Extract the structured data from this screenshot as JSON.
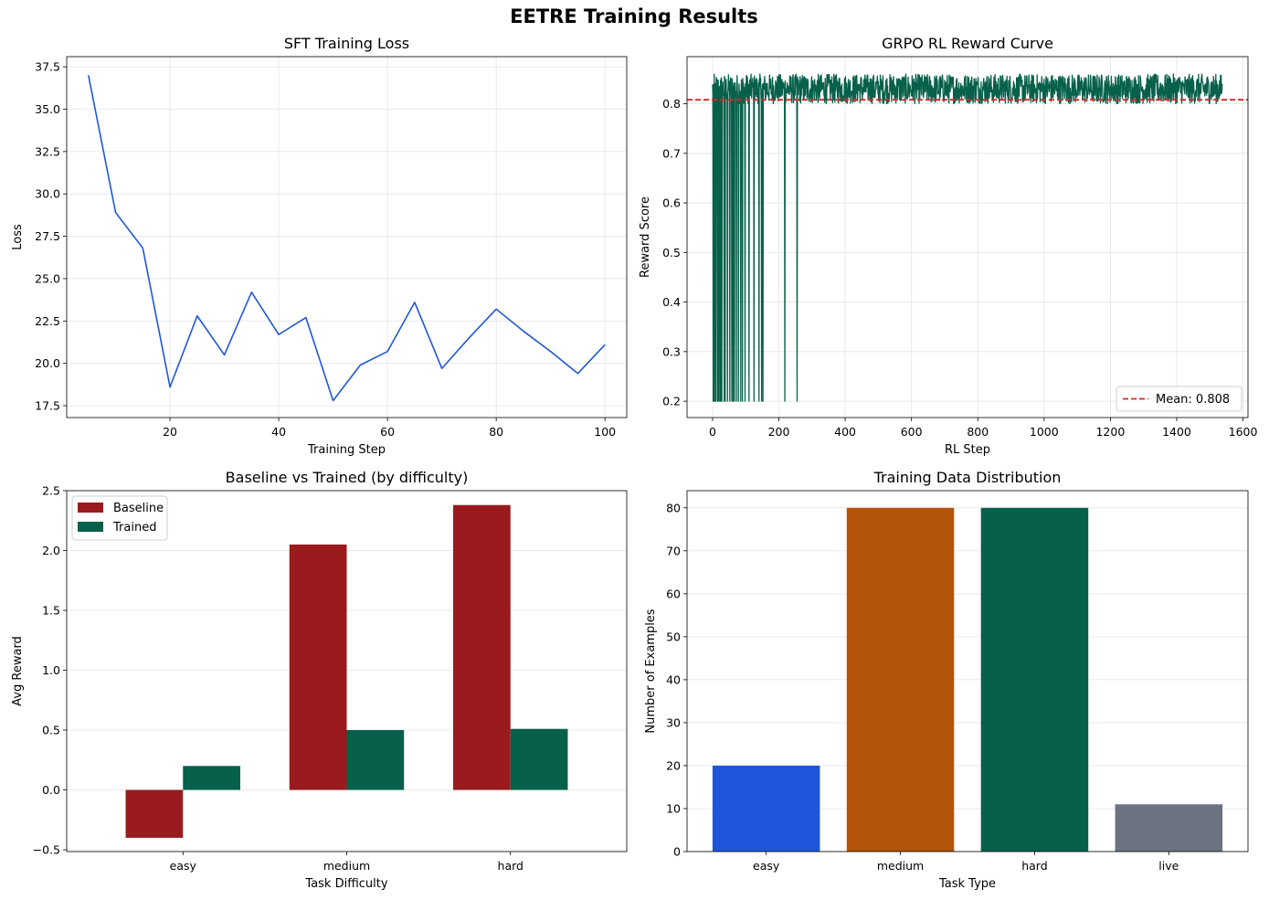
{
  "figure": {
    "title": "EETRE Training Results"
  },
  "chart_data": [
    {
      "id": "sft",
      "type": "line",
      "title": "SFT Training Loss",
      "xlabel": "Training Step",
      "ylabel": "Loss",
      "xlim": [
        1,
        104
      ],
      "ylim": [
        16.8,
        38.1
      ],
      "xticks": [
        20,
        40,
        60,
        80,
        100
      ],
      "yticks": [
        17.5,
        20.0,
        22.5,
        25.0,
        27.5,
        30.0,
        32.5,
        35.0,
        37.5
      ],
      "ytick_decimals": 1,
      "grid": true,
      "color": "#1f57d6",
      "x": [
        5,
        10,
        15,
        20,
        25,
        30,
        35,
        40,
        45,
        50,
        55,
        60,
        65,
        70,
        75,
        80,
        85,
        90,
        95,
        100
      ],
      "y": [
        37.0,
        28.9,
        26.8,
        18.6,
        22.8,
        20.5,
        24.2,
        21.7,
        22.7,
        17.8,
        19.9,
        20.7,
        23.6,
        19.7,
        21.5,
        23.2,
        21.9,
        20.7,
        19.4,
        21.1
      ]
    },
    {
      "id": "grpo",
      "type": "line",
      "title": "GRPO RL Reward Curve",
      "xlabel": "RL Step",
      "ylabel": "Reward Score",
      "xlim": [
        -77,
        1615
      ],
      "ylim": [
        0.167,
        0.895
      ],
      "xticks": [
        0,
        200,
        400,
        600,
        800,
        1000,
        1200,
        1400,
        1600
      ],
      "yticks": [
        0.2,
        0.3,
        0.4,
        0.5,
        0.6,
        0.7,
        0.8
      ],
      "ytick_decimals": 1,
      "grid": true,
      "color": "#06604a",
      "steps": 1538,
      "low_value": 0.2,
      "band": [
        0.8,
        0.86
      ],
      "drop_steps": [
        2,
        4,
        6,
        10,
        15,
        18,
        22,
        25,
        28,
        35,
        38,
        45,
        52,
        58,
        62,
        66,
        72,
        78,
        85,
        90,
        98,
        110,
        125,
        140,
        148,
        152,
        218,
        255
      ],
      "mean": {
        "value": 0.808,
        "label": "Mean: 0.808",
        "color": "#d62728"
      },
      "legend": "lower-right"
    },
    {
      "id": "baseline_vs_trained",
      "type": "bar",
      "title": "Baseline vs Trained (by difficulty)",
      "xlabel": "Task Difficulty",
      "ylabel": "Avg Reward",
      "categories": [
        "easy",
        "medium",
        "hard"
      ],
      "ylim": [
        -0.515,
        2.5
      ],
      "yticks": [
        -0.5,
        0.0,
        0.5,
        1.0,
        1.5,
        2.0,
        2.5
      ],
      "ytick_decimals": 1,
      "grid": true,
      "legend": "upper-left",
      "series": [
        {
          "name": "Baseline",
          "values": [
            -0.4,
            2.05,
            2.38
          ],
          "color": "#991b1e"
        },
        {
          "name": "Trained",
          "values": [
            0.2,
            0.5,
            0.51
          ],
          "color": "#06604a"
        }
      ]
    },
    {
      "id": "distribution",
      "type": "bar",
      "title": "Training Data Distribution",
      "xlabel": "Task Type",
      "ylabel": "Number of Examples",
      "categories": [
        "easy",
        "medium",
        "hard",
        "live"
      ],
      "values": [
        20,
        80,
        80,
        11
      ],
      "colors": [
        "#1d56db",
        "#b4530a",
        "#06604a",
        "#6b7280"
      ],
      "ylim": [
        0,
        84
      ],
      "yticks": [
        0,
        10,
        20,
        30,
        40,
        50,
        60,
        70,
        80
      ],
      "ytick_decimals": 0,
      "grid": true
    }
  ]
}
